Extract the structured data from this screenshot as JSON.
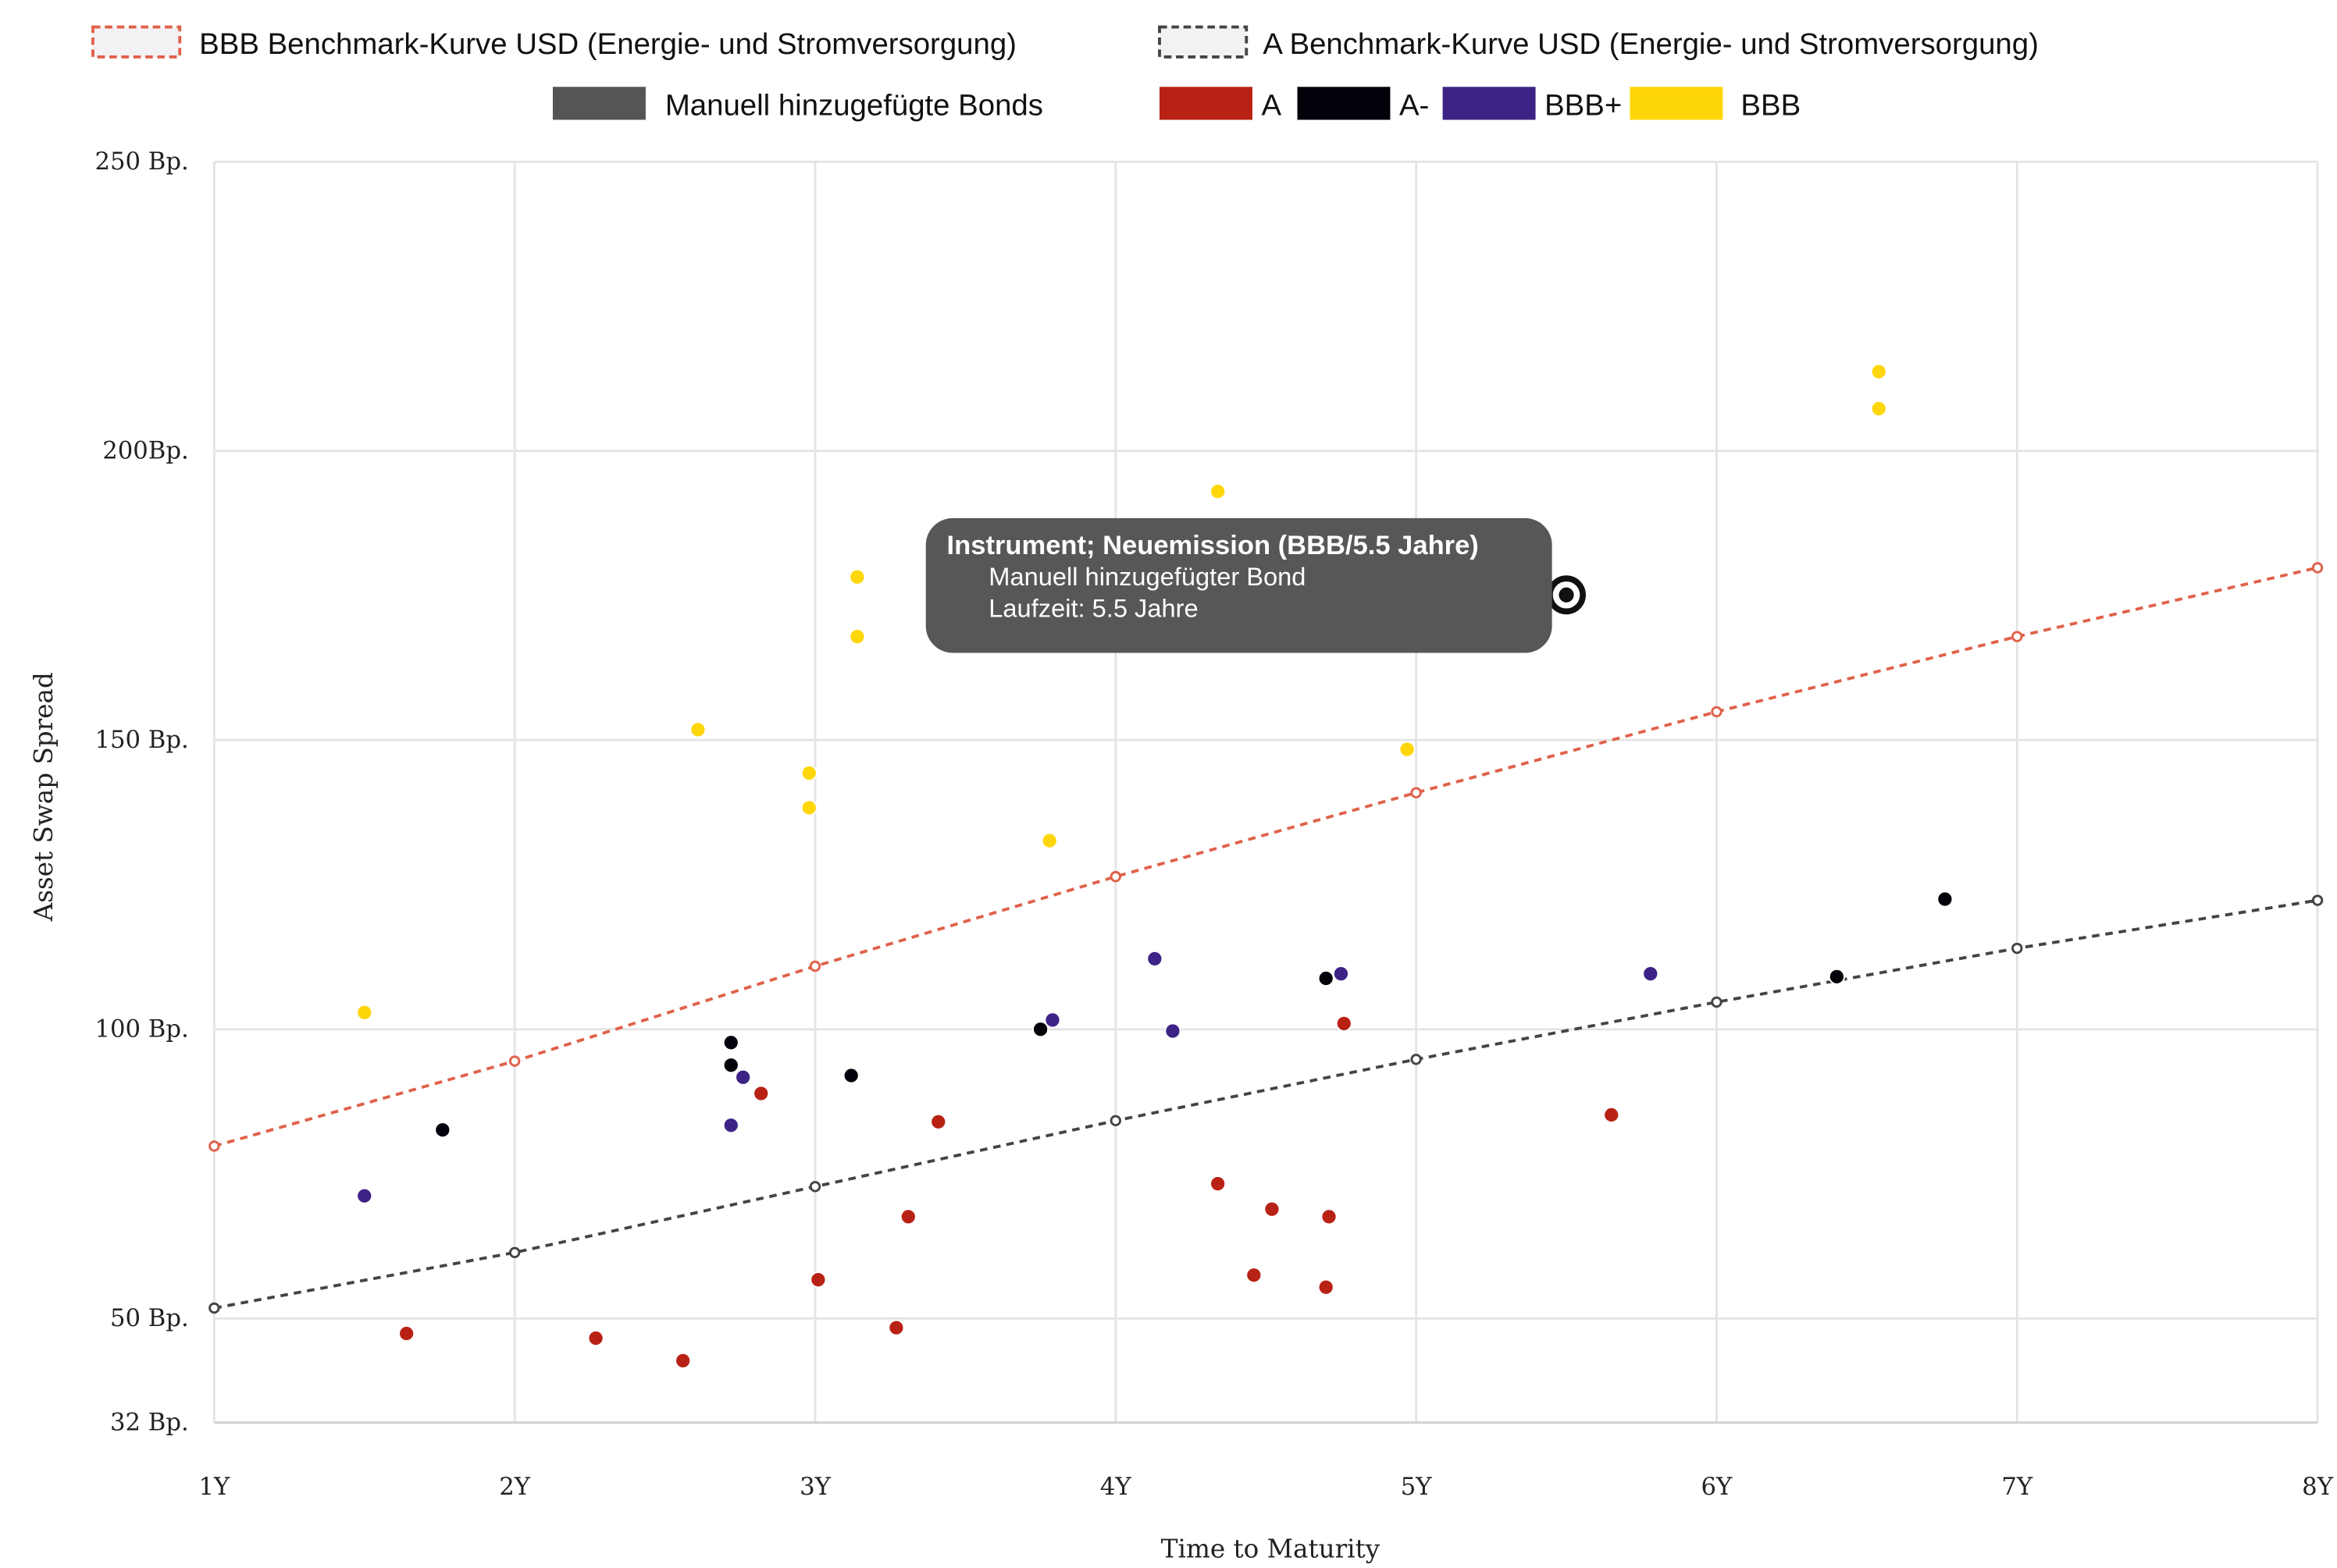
{
  "chart_data": {
    "type": "scatter",
    "xlabel": "Time to Maturity",
    "ylabel": "Asset Swap Spread",
    "xlim": [
      1,
      8
    ],
    "ylim": [
      32,
      250
    ],
    "grid": true,
    "legend_placement": "top",
    "x_ticks": [
      {
        "v": 1,
        "label": "1Y"
      },
      {
        "v": 2,
        "label": "2Y"
      },
      {
        "v": 3,
        "label": "3Y"
      },
      {
        "v": 4,
        "label": "4Y"
      },
      {
        "v": 5,
        "label": "5Y"
      },
      {
        "v": 6,
        "label": "6Y"
      },
      {
        "v": 7,
        "label": "7Y"
      },
      {
        "v": 8,
        "label": "8Y"
      }
    ],
    "y_ticks": [
      {
        "v": 32,
        "label": "32 Bp."
      },
      {
        "v": 50,
        "label": "50 Bp."
      },
      {
        "v": 100,
        "label": "100 Bp."
      },
      {
        "v": 150,
        "label": "150 Bp."
      },
      {
        "v": 200,
        "label": "200Bp."
      },
      {
        "v": 250,
        "label": "250 Bp."
      }
    ],
    "curves": [
      {
        "name": "BBB Benchmark-Kurve USD (Energie- und Stromversorgung)",
        "color": "#e0614a",
        "x": [
          1,
          2,
          3,
          4,
          5,
          6,
          7,
          8
        ],
        "y": [
          79.8,
          94.5,
          110.9,
          126.4,
          140.9,
          154.9,
          167.9,
          179.8
        ]
      },
      {
        "name": "A Benchmark-Kurve USD (Energie- und Stromversorgung)",
        "color": "#444444",
        "x": [
          1,
          2,
          3,
          4,
          5,
          6,
          7,
          8
        ],
        "y": [
          51.8,
          61.4,
          72.8,
          84.2,
          94.8,
          104.7,
          114.0,
          122.3
        ]
      }
    ],
    "manual_legend": {
      "name": "Manuell hinzugefügte Bonds",
      "color": "#555555"
    },
    "series": [
      {
        "name": "A",
        "color": "#b82215",
        "points": [
          [
            1.64,
            47.4
          ],
          [
            2.27,
            46.6
          ],
          [
            2.56,
            42.7
          ],
          [
            2.82,
            88.9
          ],
          [
            3.01,
            56.7
          ],
          [
            3.27,
            48.4
          ],
          [
            3.31,
            67.6
          ],
          [
            3.41,
            84.0
          ],
          [
            4.34,
            73.3
          ],
          [
            4.46,
            57.5
          ],
          [
            4.52,
            68.9
          ],
          [
            4.7,
            55.4
          ],
          [
            4.71,
            67.6
          ],
          [
            4.76,
            101.0
          ],
          [
            5.65,
            85.2
          ]
        ]
      },
      {
        "name": "A-",
        "color": "#05010a",
        "points": [
          [
            1.76,
            82.6
          ],
          [
            2.72,
            97.7
          ],
          [
            2.72,
            93.8
          ],
          [
            3.12,
            92.0
          ],
          [
            3.75,
            100.0
          ],
          [
            4.7,
            108.8
          ],
          [
            6.4,
            109.1
          ],
          [
            6.76,
            122.5
          ]
        ]
      },
      {
        "name": "BBB+",
        "color": "#3d2385",
        "points": [
          [
            1.5,
            71.2
          ],
          [
            2.72,
            83.4
          ],
          [
            2.76,
            91.7
          ],
          [
            3.79,
            101.6
          ],
          [
            4.13,
            112.2
          ],
          [
            4.19,
            99.7
          ],
          [
            4.75,
            109.6
          ],
          [
            5.78,
            109.6
          ]
        ]
      },
      {
        "name": "BBB",
        "color": "#ffd60a",
        "points": [
          [
            1.5,
            102.9
          ],
          [
            2.61,
            151.8
          ],
          [
            2.98,
            144.3
          ],
          [
            2.98,
            138.3
          ],
          [
            3.14,
            178.2
          ],
          [
            3.14,
            167.9
          ],
          [
            3.78,
            132.6
          ],
          [
            4.34,
            193.0
          ],
          [
            4.97,
            148.4
          ],
          [
            6.54,
            213.7
          ],
          [
            6.54,
            207.3
          ]
        ]
      }
    ],
    "manual_points": [
      [
        5.5,
        175.1
      ]
    ],
    "tooltip": {
      "title": "Instrument; Neuemission (BBB/5.5 Jahre)",
      "line1": "Manuell hinzugefügter Bond",
      "line2": "Laufzeit: 5.5 Jahre"
    }
  }
}
